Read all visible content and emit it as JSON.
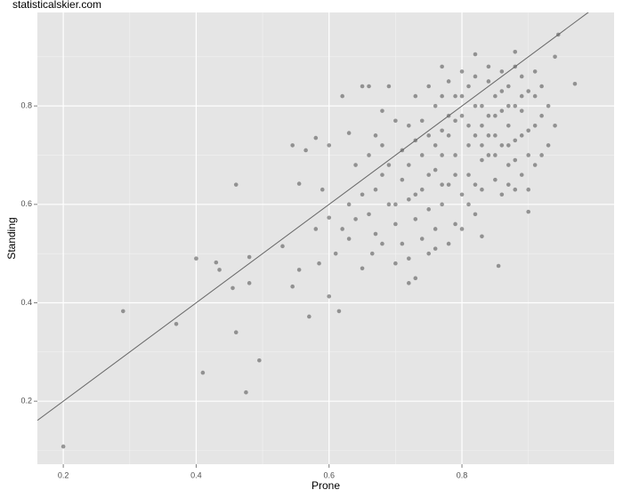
{
  "chart_data": {
    "type": "scatter",
    "title": "statisticalskier.com",
    "x_label": "Prone",
    "y_label": "Standing",
    "x": [
      0.2,
      0.29,
      0.37,
      0.41,
      0.4,
      0.43,
      0.435,
      0.455,
      0.46,
      0.46,
      0.475,
      0.48,
      0.48,
      0.495,
      0.53,
      0.545,
      0.545,
      0.555,
      0.555,
      0.565,
      0.57,
      0.58,
      0.58,
      0.585,
      0.59,
      0.6,
      0.6,
      0.6,
      0.61,
      0.615,
      0.62,
      0.63,
      0.64,
      0.65,
      0.66,
      0.65,
      0.665,
      0.68,
      0.68,
      0.69,
      0.97,
      0.945,
      0.94,
      0.88,
      0.82,
      0.855,
      0.83,
      0.9,
      0.77,
      0.76,
      0.7,
      0.71,
      0.72,
      0.73,
      0.74,
      0.75,
      0.76,
      0.77,
      0.78,
      0.79,
      0.8,
      0.81,
      0.82,
      0.83,
      0.84,
      0.85,
      0.86,
      0.87,
      0.88,
      0.89,
      0.9,
      0.91,
      0.92,
      0.93,
      0.94,
      0.84,
      0.85,
      0.86,
      0.87,
      0.88,
      0.8,
      0.81,
      0.82,
      0.79,
      0.78,
      0.77,
      0.76,
      0.75,
      0.74,
      0.73,
      0.72,
      0.71,
      0.7,
      0.69,
      0.68,
      0.67,
      0.66,
      0.65,
      0.64,
      0.63,
      0.62,
      0.63,
      0.66,
      0.67,
      0.7,
      0.73,
      0.72,
      0.75,
      0.78,
      0.8,
      0.82,
      0.83,
      0.84,
      0.85,
      0.86,
      0.87,
      0.88,
      0.89,
      0.9,
      0.91,
      0.92,
      0.9,
      0.91,
      0.89,
      0.88,
      0.86,
      0.85,
      0.84,
      0.83,
      0.82,
      0.81,
      0.8,
      0.79,
      0.78,
      0.77,
      0.76,
      0.75,
      0.74,
      0.73,
      0.72,
      0.71,
      0.76,
      0.78,
      0.8,
      0.82,
      0.84,
      0.86,
      0.87,
      0.88,
      0.89,
      0.83,
      0.81,
      0.79,
      0.77,
      0.74,
      0.72,
      0.69,
      0.68,
      0.67,
      0.7,
      0.73,
      0.75,
      0.77,
      0.79,
      0.81,
      0.83,
      0.85,
      0.87,
      0.89,
      0.91,
      0.93,
      0.92,
      0.9,
      0.87
    ],
    "values": [
      0.108,
      0.383,
      0.357,
      0.258,
      0.49,
      0.482,
      0.467,
      0.43,
      0.64,
      0.34,
      0.218,
      0.44,
      0.493,
      0.283,
      0.515,
      0.72,
      0.433,
      0.467,
      0.642,
      0.71,
      0.372,
      0.55,
      0.735,
      0.48,
      0.63,
      0.72,
      0.413,
      0.573,
      0.5,
      0.383,
      0.82,
      0.745,
      0.57,
      0.84,
      0.84,
      0.47,
      0.5,
      0.52,
      0.79,
      0.84,
      0.845,
      0.945,
      0.9,
      0.91,
      0.905,
      0.475,
      0.535,
      0.585,
      0.88,
      0.51,
      0.6,
      0.65,
      0.68,
      0.62,
      0.7,
      0.66,
      0.72,
      0.75,
      0.78,
      0.7,
      0.82,
      0.76,
      0.74,
      0.8,
      0.85,
      0.78,
      0.83,
      0.76,
      0.8,
      0.86,
      0.75,
      0.82,
      0.78,
      0.72,
      0.76,
      0.7,
      0.65,
      0.62,
      0.68,
      0.73,
      0.62,
      0.66,
      0.58,
      0.56,
      0.64,
      0.6,
      0.55,
      0.59,
      0.53,
      0.57,
      0.49,
      0.52,
      0.56,
      0.6,
      0.66,
      0.63,
      0.7,
      0.62,
      0.68,
      0.6,
      0.55,
      0.53,
      0.58,
      0.54,
      0.48,
      0.45,
      0.44,
      0.5,
      0.52,
      0.55,
      0.64,
      0.69,
      0.74,
      0.82,
      0.87,
      0.84,
      0.88,
      0.79,
      0.83,
      0.87,
      0.84,
      0.7,
      0.68,
      0.66,
      0.63,
      0.72,
      0.74,
      0.78,
      0.76,
      0.8,
      0.84,
      0.78,
      0.82,
      0.74,
      0.7,
      0.67,
      0.74,
      0.77,
      0.73,
      0.76,
      0.71,
      0.8,
      0.85,
      0.87,
      0.86,
      0.88,
      0.79,
      0.72,
      0.69,
      0.74,
      0.63,
      0.6,
      0.66,
      0.64,
      0.63,
      0.61,
      0.68,
      0.72,
      0.74,
      0.77,
      0.82,
      0.84,
      0.82,
      0.77,
      0.72,
      0.72,
      0.7,
      0.8,
      0.82,
      0.76,
      0.8,
      0.7,
      0.63,
      0.64
    ],
    "color": "#4d4d4d",
    "reference_line": {
      "slope": 1,
      "intercept": 0
    },
    "xlim": [
      0.161,
      1.029
    ],
    "ylim": [
      0.072,
      0.99
    ],
    "xticks": [
      0.2,
      0.4,
      0.6,
      0.8
    ],
    "yticks": [
      0.2,
      0.4,
      0.6,
      0.8
    ],
    "grid": true
  }
}
